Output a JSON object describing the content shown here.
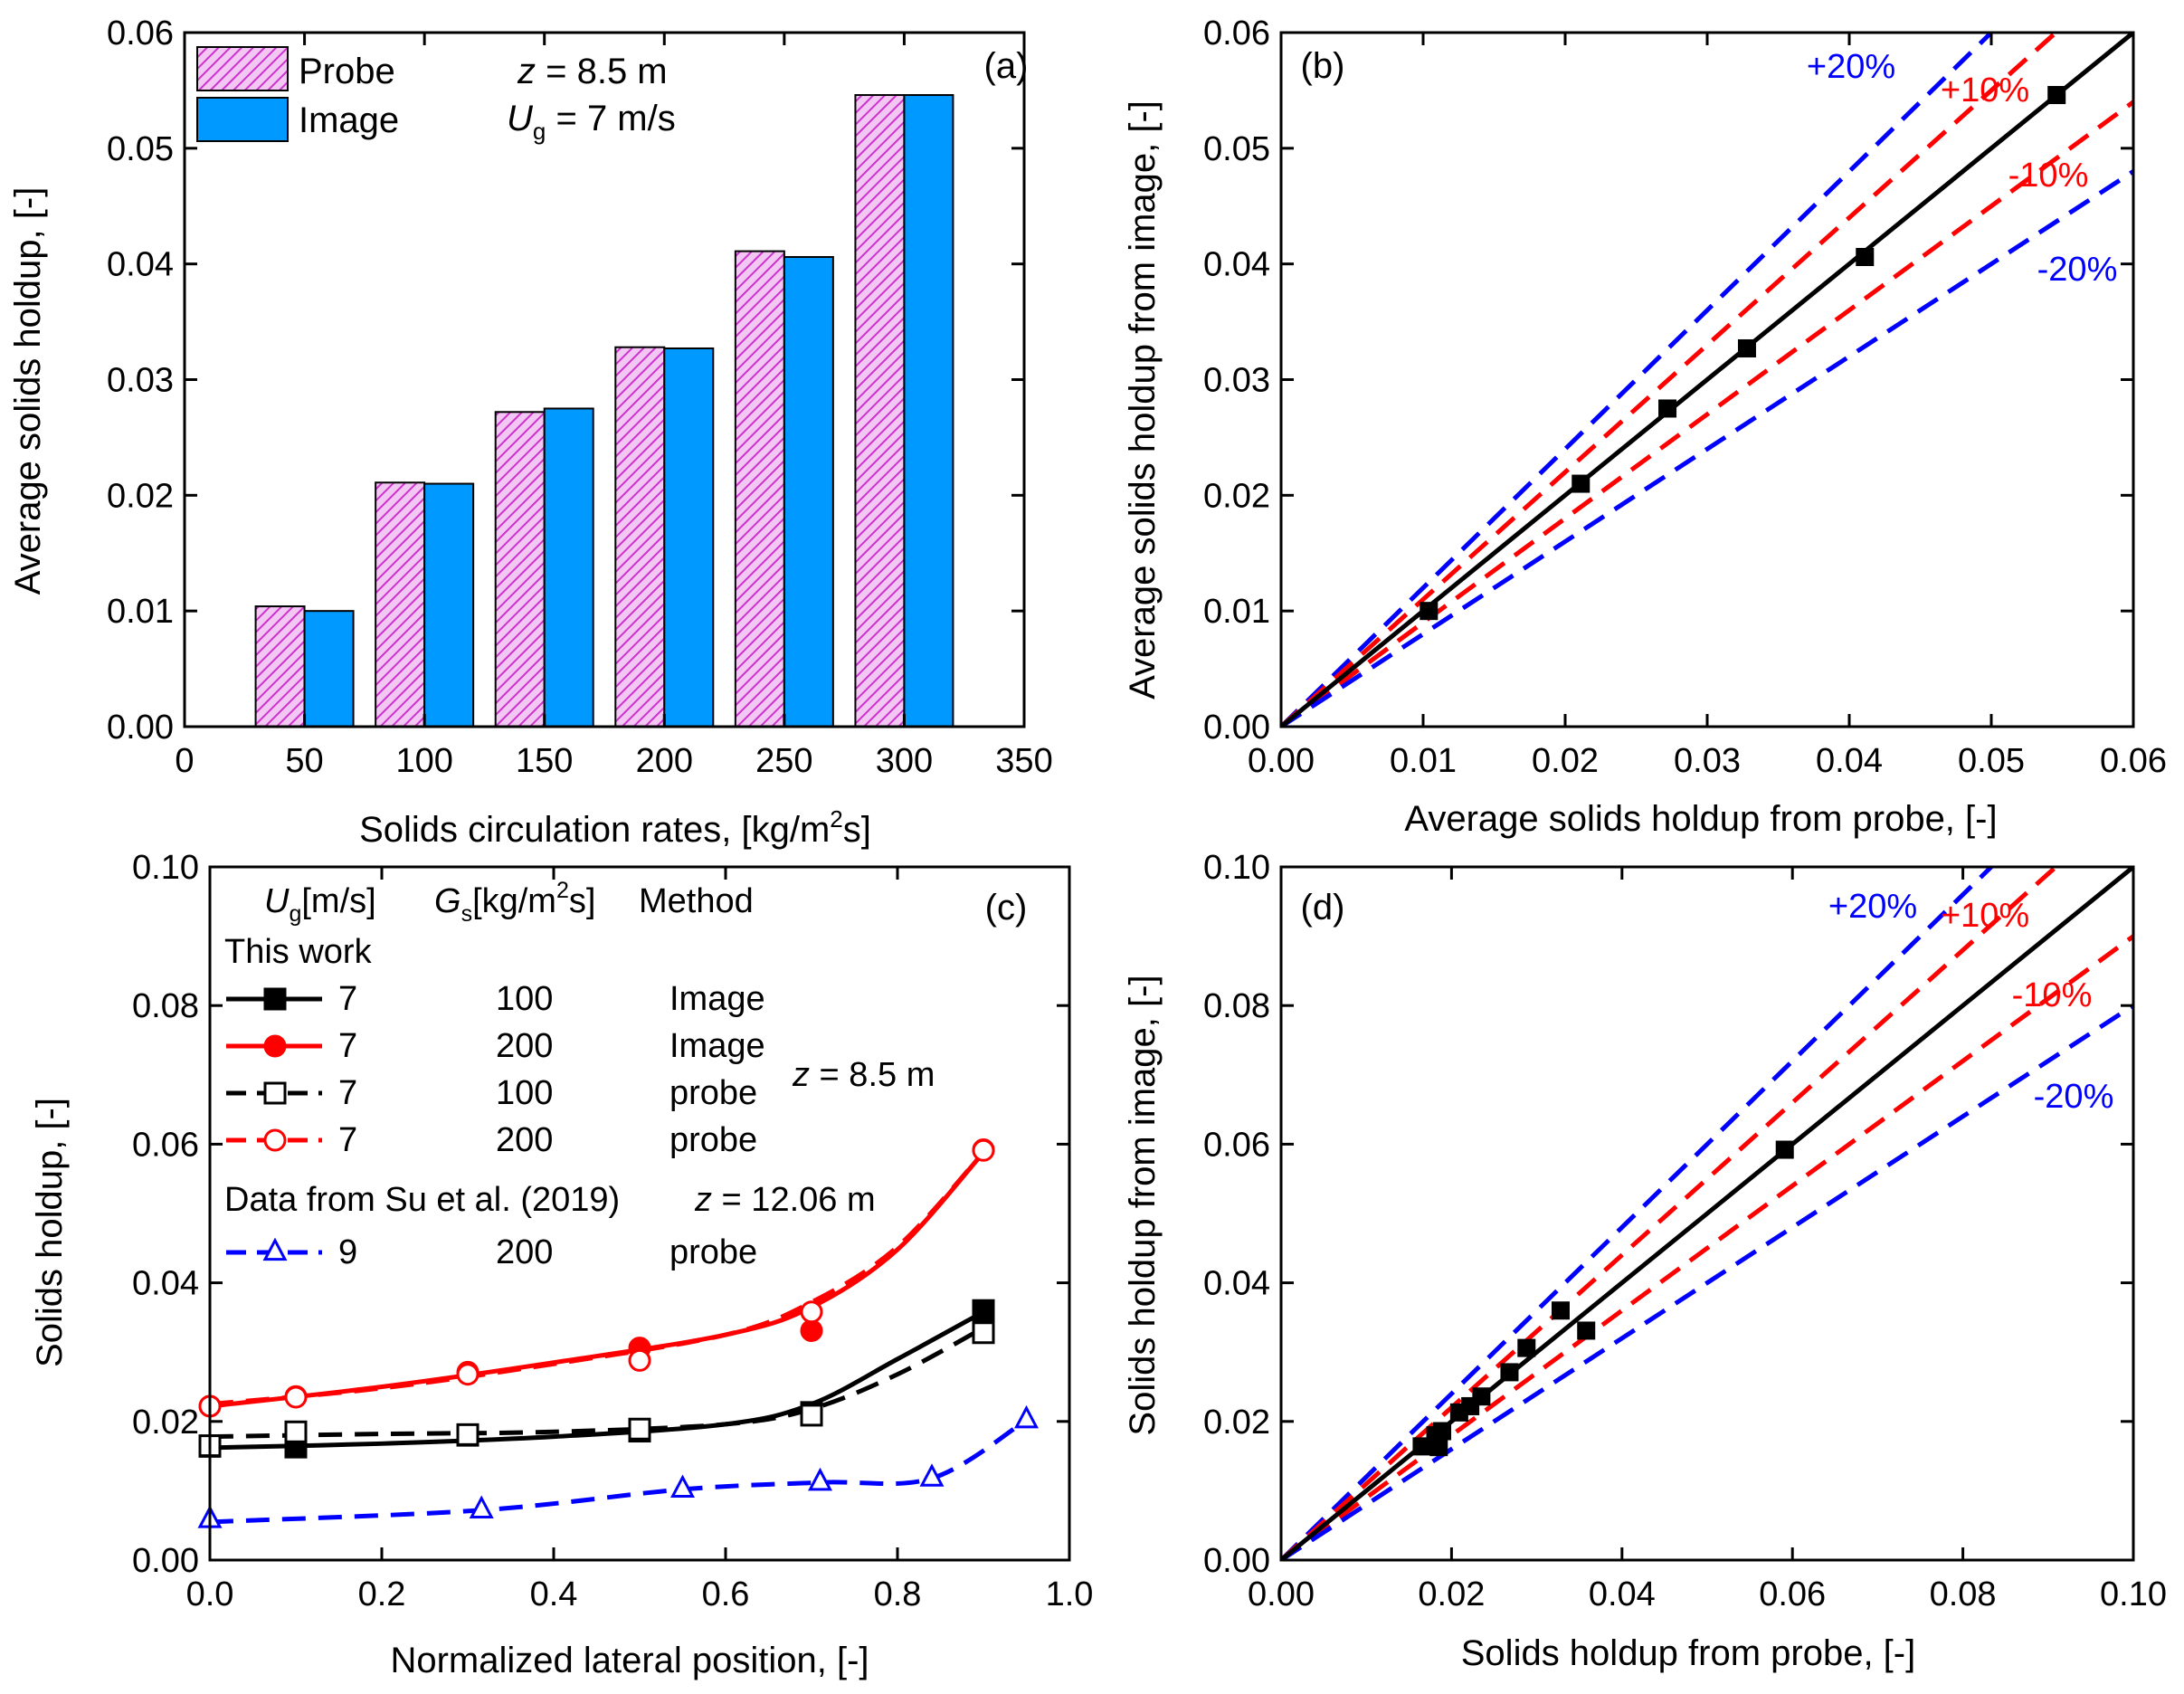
{
  "colors": {
    "axis": "#000000",
    "probe_fill": "#e8a0e8",
    "probe_hatch": "#cc33cc",
    "image_fill": "#0099ff",
    "black": "#000000",
    "red": "#ff0000",
    "blue": "#0000ff"
  },
  "chart_data": [
    {
      "id": "a",
      "type": "bar",
      "panel_label": "(a)",
      "xlabel": "Solids circulation rates, [kg/m",
      "xlabel_sup": "2",
      "xlabel_tail": "s]",
      "ylabel": "Average solids holdup, [-]",
      "xlim": [
        0,
        350
      ],
      "ylim": [
        0,
        0.06
      ],
      "xticks": [
        0,
        50,
        100,
        150,
        200,
        250,
        300,
        350
      ],
      "xtick_labels": [
        "0",
        "50",
        "100",
        "150",
        "200",
        "250",
        "300",
        "350"
      ],
      "yticks": [
        0,
        0.01,
        0.02,
        0.03,
        0.04,
        0.05,
        0.06
      ],
      "ytick_labels": [
        "0.00",
        "0.01",
        "0.02",
        "0.03",
        "0.04",
        "0.05",
        "0.06"
      ],
      "categories": [
        50,
        100,
        150,
        200,
        250,
        300
      ],
      "series": [
        {
          "name": "Probe",
          "values": [
            0.0104,
            0.0211,
            0.0272,
            0.0328,
            0.0411,
            0.0546
          ]
        },
        {
          "name": "Image",
          "values": [
            0.01,
            0.021,
            0.0275,
            0.0327,
            0.0406,
            0.0546
          ]
        }
      ],
      "annotations": {
        "z_label": "z",
        "z_value": " = 8.5 m",
        "ug_label": "U",
        "ug_sub": "g",
        "ug_value": " = 7 m/s"
      }
    },
    {
      "id": "b",
      "type": "scatter",
      "panel_label": "(b)",
      "xlabel": "Average solids holdup from probe, [-]",
      "ylabel": "Average solids holdup from image, [-]",
      "xlim": [
        0,
        0.06
      ],
      "ylim": [
        0,
        0.06
      ],
      "xticks": [
        0,
        0.01,
        0.02,
        0.03,
        0.04,
        0.05,
        0.06
      ],
      "xtick_labels": [
        "0.00",
        "0.01",
        "0.02",
        "0.03",
        "0.04",
        "0.05",
        "0.06"
      ],
      "yticks": [
        0,
        0.01,
        0.02,
        0.03,
        0.04,
        0.05,
        0.06
      ],
      "ytick_labels": [
        "0.00",
        "0.01",
        "0.02",
        "0.03",
        "0.04",
        "0.05",
        "0.06"
      ],
      "points": {
        "x": [
          0.0104,
          0.0211,
          0.0272,
          0.0328,
          0.0411,
          0.0546
        ],
        "y": [
          0.01,
          0.021,
          0.0275,
          0.0327,
          0.0406,
          0.0546
        ]
      },
      "reference_lines": [
        {
          "label": "+20%",
          "factor": 1.2,
          "color": "blue"
        },
        {
          "label": "+10%",
          "factor": 1.1,
          "color": "red"
        },
        {
          "label": "-10%",
          "factor": 0.9,
          "color": "red"
        },
        {
          "label": "-20%",
          "factor": 0.8,
          "color": "blue"
        }
      ]
    },
    {
      "id": "c",
      "type": "line",
      "panel_label": "(c)",
      "xlabel": "Normalized lateral position, [-]",
      "ylabel": "Solids holdup, [-]",
      "xlim": [
        0,
        1.0
      ],
      "ylim": [
        0,
        0.1
      ],
      "xticks": [
        0,
        0.2,
        0.4,
        0.6,
        0.8,
        1.0
      ],
      "xtick_labels": [
        "0.0",
        "0.2",
        "0.4",
        "0.6",
        "0.8",
        "1.0"
      ],
      "yticks": [
        0,
        0.02,
        0.04,
        0.06,
        0.08,
        0.1
      ],
      "ytick_labels": [
        "0.00",
        "0.02",
        "0.04",
        "0.06",
        "0.08",
        "0.10"
      ],
      "legend": {
        "header_ug": "U",
        "header_ug_sub": "g",
        "header_ug_unit": "[m/s]",
        "header_gs": "G",
        "header_gs_sub": "s",
        "header_gs_unit": "[kg/m",
        "header_gs_sup": "2",
        "header_gs_tail": "s]",
        "header_method": "Method",
        "group1": "This work",
        "group2": "Data from Su et al. (2019)",
        "z1_label": "z",
        "z1_value": " = 8.5 m",
        "z2_label": "z",
        "z2_value": " = 12.06 m"
      },
      "series": [
        {
          "name": "image-100",
          "ug": "7",
          "gs": "100",
          "method": "Image",
          "color": "black",
          "marker": "square-filled",
          "dash": false,
          "x": [
            0.0,
            0.1,
            0.3,
            0.5,
            0.7,
            0.9
          ],
          "y": [
            0.0164,
            0.0163,
            0.018,
            0.0186,
            0.0213,
            0.036
          ],
          "curve": [
            [
              0.0,
              0.0162
            ],
            [
              0.2,
              0.0168
            ],
            [
              0.4,
              0.0178
            ],
            [
              0.6,
              0.0196
            ],
            [
              0.7,
              0.0225
            ],
            [
              0.8,
              0.029
            ],
            [
              0.9,
              0.0358
            ]
          ]
        },
        {
          "name": "image-200",
          "ug": "7",
          "gs": "200",
          "method": "Image",
          "color": "red",
          "marker": "circle-filled",
          "dash": false,
          "x": [
            0.0,
            0.1,
            0.3,
            0.5,
            0.7,
            0.9
          ],
          "y": [
            0.0222,
            0.0236,
            0.0271,
            0.0306,
            0.0331,
            0.0592
          ],
          "curve": [
            [
              0.0,
              0.0222
            ],
            [
              0.2,
              0.025
            ],
            [
              0.4,
              0.0285
            ],
            [
              0.6,
              0.0325
            ],
            [
              0.7,
              0.0365
            ],
            [
              0.8,
              0.0448
            ],
            [
              0.9,
              0.0588
            ]
          ]
        },
        {
          "name": "probe-100",
          "ug": "7",
          "gs": "100",
          "method": "probe",
          "color": "black",
          "marker": "square-open",
          "dash": true,
          "x": [
            0.0,
            0.1,
            0.3,
            0.5,
            0.7,
            0.9
          ],
          "y": [
            0.0165,
            0.0185,
            0.0181,
            0.0189,
            0.0209,
            0.0328
          ],
          "curve": [
            [
              0.0,
              0.0178
            ],
            [
              0.2,
              0.0182
            ],
            [
              0.4,
              0.0185
            ],
            [
              0.6,
              0.0196
            ],
            [
              0.7,
              0.0218
            ],
            [
              0.8,
              0.0268
            ],
            [
              0.9,
              0.0335
            ]
          ]
        },
        {
          "name": "probe-200",
          "ug": "7",
          "gs": "200",
          "method": "probe",
          "color": "red",
          "marker": "circle-open",
          "dash": true,
          "x": [
            0.0,
            0.1,
            0.3,
            0.5,
            0.7,
            0.9
          ],
          "y": [
            0.0222,
            0.0235,
            0.0268,
            0.0288,
            0.0358,
            0.0591
          ],
          "curve": [
            [
              0.0,
              0.0225
            ],
            [
              0.2,
              0.0248
            ],
            [
              0.4,
              0.0283
            ],
            [
              0.6,
              0.0325
            ],
            [
              0.7,
              0.0372
            ],
            [
              0.8,
              0.0452
            ],
            [
              0.9,
              0.0588
            ]
          ]
        },
        {
          "name": "su-2019",
          "ug": "9",
          "gs": "200",
          "method": "probe",
          "color": "blue",
          "marker": "triangle-open",
          "dash": true,
          "x": [
            0.0,
            0.316,
            0.55,
            0.71,
            0.84,
            0.95
          ],
          "y": [
            0.0058,
            0.0072,
            0.0102,
            0.0112,
            0.0118,
            0.0202
          ],
          "curve": [
            [
              0.0,
              0.0055
            ],
            [
              0.316,
              0.0072
            ],
            [
              0.55,
              0.0102
            ],
            [
              0.71,
              0.0112
            ],
            [
              0.84,
              0.0118
            ],
            [
              0.95,
              0.0202
            ]
          ]
        }
      ]
    },
    {
      "id": "d",
      "type": "scatter",
      "panel_label": "(d)",
      "xlabel": "Solids holdup from probe, [-]",
      "ylabel": "Solids holdup from image, [-]",
      "xlim": [
        0,
        0.1
      ],
      "ylim": [
        0,
        0.1
      ],
      "xticks": [
        0,
        0.02,
        0.04,
        0.06,
        0.08,
        0.1
      ],
      "xtick_labels": [
        "0.00",
        "0.02",
        "0.04",
        "0.06",
        "0.08",
        "0.10"
      ],
      "yticks": [
        0,
        0.02,
        0.04,
        0.06,
        0.08,
        0.1
      ],
      "ytick_labels": [
        "0.00",
        "0.02",
        "0.04",
        "0.06",
        "0.08",
        "0.10"
      ],
      "points": {
        "x": [
          0.0165,
          0.0185,
          0.0181,
          0.0189,
          0.0209,
          0.0328,
          0.0222,
          0.0235,
          0.0268,
          0.0288,
          0.0358,
          0.0591
        ],
        "y": [
          0.0164,
          0.0163,
          0.018,
          0.0186,
          0.0213,
          0.036,
          0.0222,
          0.0236,
          0.0271,
          0.0306,
          0.0331,
          0.0592
        ]
      },
      "reference_lines": [
        {
          "label": "+20%",
          "factor": 1.2,
          "color": "blue"
        },
        {
          "label": "+10%",
          "factor": 1.1,
          "color": "red"
        },
        {
          "label": "-10%",
          "factor": 0.9,
          "color": "red"
        },
        {
          "label": "-20%",
          "factor": 0.8,
          "color": "blue"
        }
      ]
    }
  ]
}
